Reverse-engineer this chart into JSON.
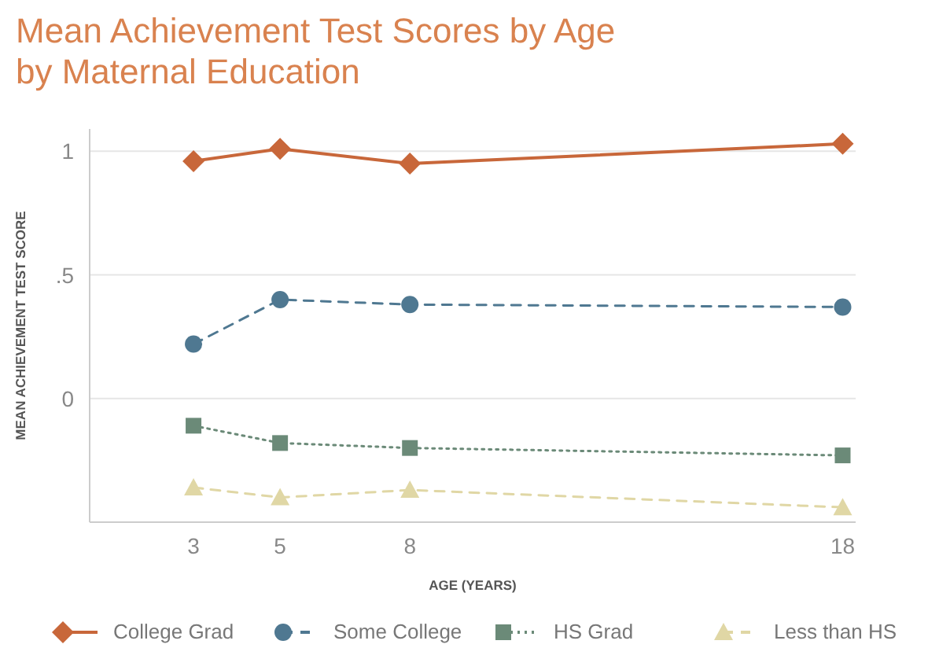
{
  "chart_data": {
    "type": "line",
    "title": "Mean Achievement Test Scores by Age\nby Maternal Education",
    "xlabel": "AGE (YEARS)",
    "ylabel": "MEAN ACHIEVEMENT TEST SCORE",
    "x": [
      3,
      5,
      8,
      18
    ],
    "xlim": [
      0.6,
      18.3
    ],
    "xticks": [
      3,
      5,
      8,
      18
    ],
    "ylim": [
      -0.5,
      1.09
    ],
    "yticks": [
      {
        "value": 0,
        "label": "0"
      },
      {
        "value": 0.5,
        "label": ".5"
      },
      {
        "value": 1,
        "label": "1"
      }
    ],
    "grid": "y",
    "legend": "bottom",
    "series": [
      {
        "name": "College Grad",
        "color": "#c8673a",
        "values": [
          0.96,
          1.01,
          0.95,
          1.03
        ],
        "marker": "diamond",
        "line_style": "solid"
      },
      {
        "name": "Some College",
        "color": "#4f7891",
        "values": [
          0.22,
          0.4,
          0.38,
          0.37
        ],
        "marker": "circle",
        "line_style": "dashed"
      },
      {
        "name": "HS Grad",
        "color": "#6b8a78",
        "values": [
          -0.11,
          -0.18,
          -0.2,
          -0.23
        ],
        "marker": "square",
        "line_style": "dotted"
      },
      {
        "name": "Less than HS",
        "color": "#e0d7a5",
        "values": [
          -0.36,
          -0.4,
          -0.37,
          -0.44
        ],
        "marker": "triangle",
        "line_style": "dashed"
      }
    ]
  }
}
